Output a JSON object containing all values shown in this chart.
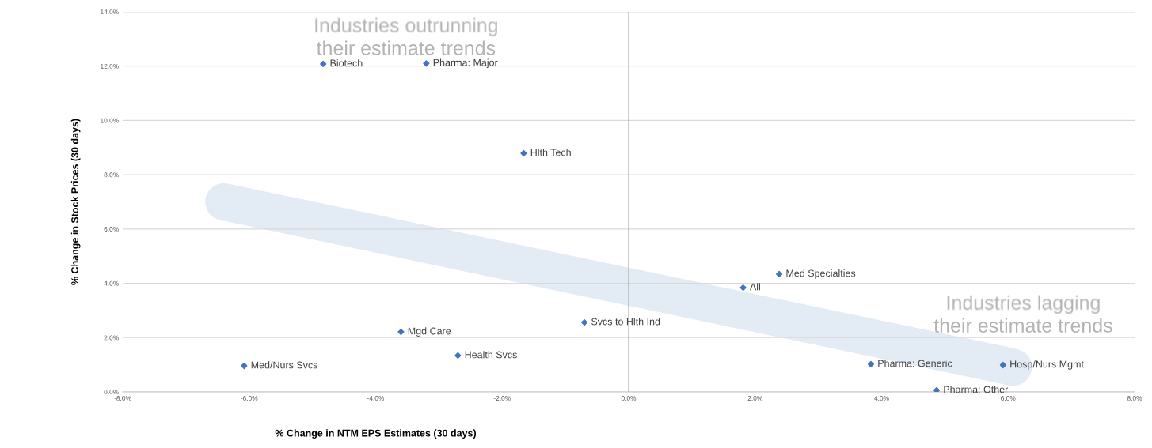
{
  "chart_data": {
    "type": "scatter",
    "xlabel": "% Change in NTM EPS Estimates (30 days)",
    "ylabel": "% Change in Stock Prices (30 days)",
    "x": [
      -4.83,
      -3.2,
      -1.66,
      2.38,
      1.81,
      -0.7,
      -3.6,
      -2.7,
      -6.08,
      3.83,
      5.92,
      4.87
    ],
    "values": [
      12.08,
      12.1,
      8.79,
      4.34,
      3.84,
      2.56,
      2.21,
      1.34,
      0.96,
      1.02,
      0.99,
      0.06
    ],
    "color": "#4472c4",
    "marker": "diamond",
    "grid": "y",
    "legend": false,
    "xlim": [
      -8,
      8
    ],
    "xticks": [
      {
        "value": -8,
        "label": "-8.0%"
      },
      {
        "value": -6,
        "label": "-6.0%"
      },
      {
        "value": -4,
        "label": "-4.0%"
      },
      {
        "value": -2,
        "label": "-2.0%"
      },
      {
        "value": 0,
        "label": "0.0%"
      },
      {
        "value": 2,
        "label": "2.0%"
      },
      {
        "value": 4,
        "label": "4.0%"
      },
      {
        "value": 6,
        "label": "6.0%"
      },
      {
        "value": 8,
        "label": "8.0%"
      }
    ],
    "ylim": [
      0,
      14
    ],
    "yticks": [
      {
        "value": 0,
        "label": "0.0%"
      },
      {
        "value": 2,
        "label": "2.0%"
      },
      {
        "value": 4,
        "label": "4.0%"
      },
      {
        "value": 6,
        "label": "6.0%"
      },
      {
        "value": 8,
        "label": "8.0%"
      },
      {
        "value": 10,
        "label": "10.0%"
      },
      {
        "value": 12,
        "label": "12.0%"
      },
      {
        "value": 14,
        "label": "14.0%"
      }
    ],
    "ref_lines": [
      {
        "axis": "x",
        "value": 0,
        "color": "#a6a6a6"
      }
    ],
    "annotations": [
      {
        "text": "Biotech",
        "x": -4.83,
        "y": 12.08
      },
      {
        "text": "Pharma: Major",
        "x": -3.2,
        "y": 12.1
      },
      {
        "text": "Hlth Tech",
        "x": -1.66,
        "y": 8.79
      },
      {
        "text": "Med Specialties",
        "x": 2.38,
        "y": 4.34
      },
      {
        "text": "All",
        "x": 1.81,
        "y": 3.84
      },
      {
        "text": "Svcs to Hlth Ind",
        "x": -0.7,
        "y": 2.56
      },
      {
        "text": "Mgd Care",
        "x": -3.6,
        "y": 2.21
      },
      {
        "text": "Health Svcs",
        "x": -2.7,
        "y": 1.34
      },
      {
        "text": "Med/Nurs Svcs",
        "x": -6.08,
        "y": 0.96
      },
      {
        "text": "Pharma: Generic",
        "x": 3.83,
        "y": 1.02
      },
      {
        "text": "Hosp/Nurs Mgmt",
        "x": 5.92,
        "y": 0.99
      },
      {
        "text": "Pharma: Other",
        "x": 4.87,
        "y": 0.06
      },
      "Industries outrunning\ntheir estimate trends",
      "Industries lagging\ntheir estimate trends"
    ]
  }
}
